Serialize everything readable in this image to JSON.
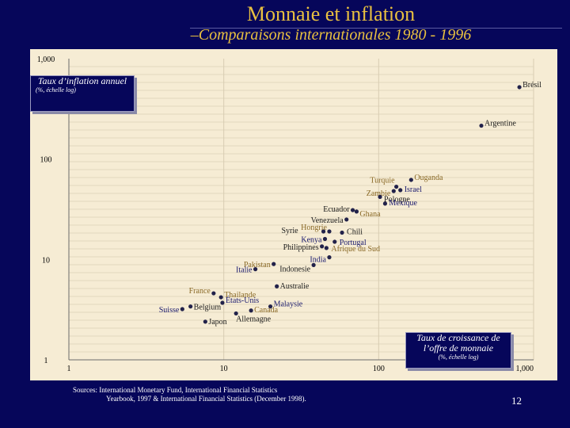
{
  "slide": {
    "title": "Monnaie et inflation",
    "subtitle": "–Comparaisons internationales 1980 - 1996",
    "y_note": {
      "main": "Taux d’inflation annuel",
      "sub": "(%, échelle log)"
    },
    "x_note": {
      "main": "Taux de croissance de l’offre de monnaie",
      "sub": "(%, échelle log)"
    },
    "source_line1": "Sources: International Monetary Fund, International Financial Statistics",
    "source_line2": "Yearbook, 1997 & International Financial Statistics (December 1998).",
    "page_number": "12"
  },
  "colors": {
    "background": "#06065a",
    "panel": "#f6ecd4",
    "title": "#e8c040",
    "point": "#22224a",
    "label_dark": "#1a1a1a",
    "label_brown": "#8a6a28",
    "label_navy": "#1a1a6e"
  },
  "chart_data": {
    "type": "scatter",
    "x_scale": "log",
    "y_scale": "log",
    "xlim": [
      1,
      1000
    ],
    "ylim": [
      1,
      1000
    ],
    "x_ticks": [
      1,
      10,
      100,
      1000
    ],
    "x_tick_labels": [
      "1",
      "10",
      "100",
      "1,000"
    ],
    "y_ticks": [
      1,
      10,
      100,
      1000
    ],
    "y_tick_labels": [
      "1",
      "10",
      "100",
      "1,000"
    ],
    "grid": true,
    "points": [
      {
        "name": "Brésil",
        "x": 810,
        "y": 520,
        "color": "label_dark"
      },
      {
        "name": "Argentine",
        "x": 460,
        "y": 215,
        "color": "label_dark"
      },
      {
        "name": "Ouganda",
        "x": 162,
        "y": 62,
        "color": "label_brown"
      },
      {
        "name": "Turquie",
        "x": 130,
        "y": 53,
        "color": "label_brown"
      },
      {
        "name": "Israel",
        "x": 138,
        "y": 49,
        "color": "label_navy"
      },
      {
        "name": "Zambie",
        "x": 125,
        "y": 48,
        "color": "label_brown"
      },
      {
        "name": "Pologne",
        "x": 102,
        "y": 42,
        "color": "label_dark"
      },
      {
        "name": "Mexique",
        "x": 110,
        "y": 36,
        "color": "label_navy"
      },
      {
        "name": "Ecuador",
        "x": 68,
        "y": 31,
        "color": "label_dark"
      },
      {
        "name": "Ghana",
        "x": 72,
        "y": 30,
        "color": "label_brown"
      },
      {
        "name": "Venezuela",
        "x": 62,
        "y": 25,
        "color": "label_dark"
      },
      {
        "name": "Syrie",
        "x": 44,
        "y": 19,
        "color": "label_dark"
      },
      {
        "name": "Hongrie",
        "x": 48,
        "y": 19,
        "color": "label_brown"
      },
      {
        "name": "Chili",
        "x": 58,
        "y": 18.5,
        "color": "label_dark"
      },
      {
        "name": "Kenya",
        "x": 45,
        "y": 16,
        "color": "label_navy"
      },
      {
        "name": "Portugal",
        "x": 52,
        "y": 15,
        "color": "label_navy"
      },
      {
        "name": "Philippines",
        "x": 43,
        "y": 13.5,
        "color": "label_dark"
      },
      {
        "name": "Afrique du Sud",
        "x": 46,
        "y": 13,
        "color": "label_brown"
      },
      {
        "name": "India",
        "x": 48,
        "y": 10.5,
        "color": "label_navy"
      },
      {
        "name": "Pakistan",
        "x": 21,
        "y": 9,
        "color": "label_brown"
      },
      {
        "name": "Italie",
        "x": 16,
        "y": 8,
        "color": "label_navy"
      },
      {
        "name": "Indonesie",
        "x": 38,
        "y": 8.8,
        "color": "label_dark"
      },
      {
        "name": "Australie",
        "x": 22,
        "y": 5.4,
        "color": "label_dark"
      },
      {
        "name": "France",
        "x": 8.6,
        "y": 4.6,
        "color": "label_brown"
      },
      {
        "name": "Thailande",
        "x": 9.6,
        "y": 4.2,
        "color": "label_brown"
      },
      {
        "name": "États-Unis",
        "x": 9.8,
        "y": 3.7,
        "color": "label_navy"
      },
      {
        "name": "Belgium",
        "x": 6.1,
        "y": 3.4,
        "color": "label_dark"
      },
      {
        "name": "Malaysie",
        "x": 20,
        "y": 3.4,
        "color": "label_navy"
      },
      {
        "name": "Canada",
        "x": 15,
        "y": 3.1,
        "color": "label_brown"
      },
      {
        "name": "Suisse",
        "x": 5.4,
        "y": 3.2,
        "color": "label_navy"
      },
      {
        "name": "Allemagne",
        "x": 12,
        "y": 2.9,
        "color": "label_dark"
      },
      {
        "name": "Japon",
        "x": 7.6,
        "y": 2.4,
        "color": "label_dark"
      }
    ]
  }
}
